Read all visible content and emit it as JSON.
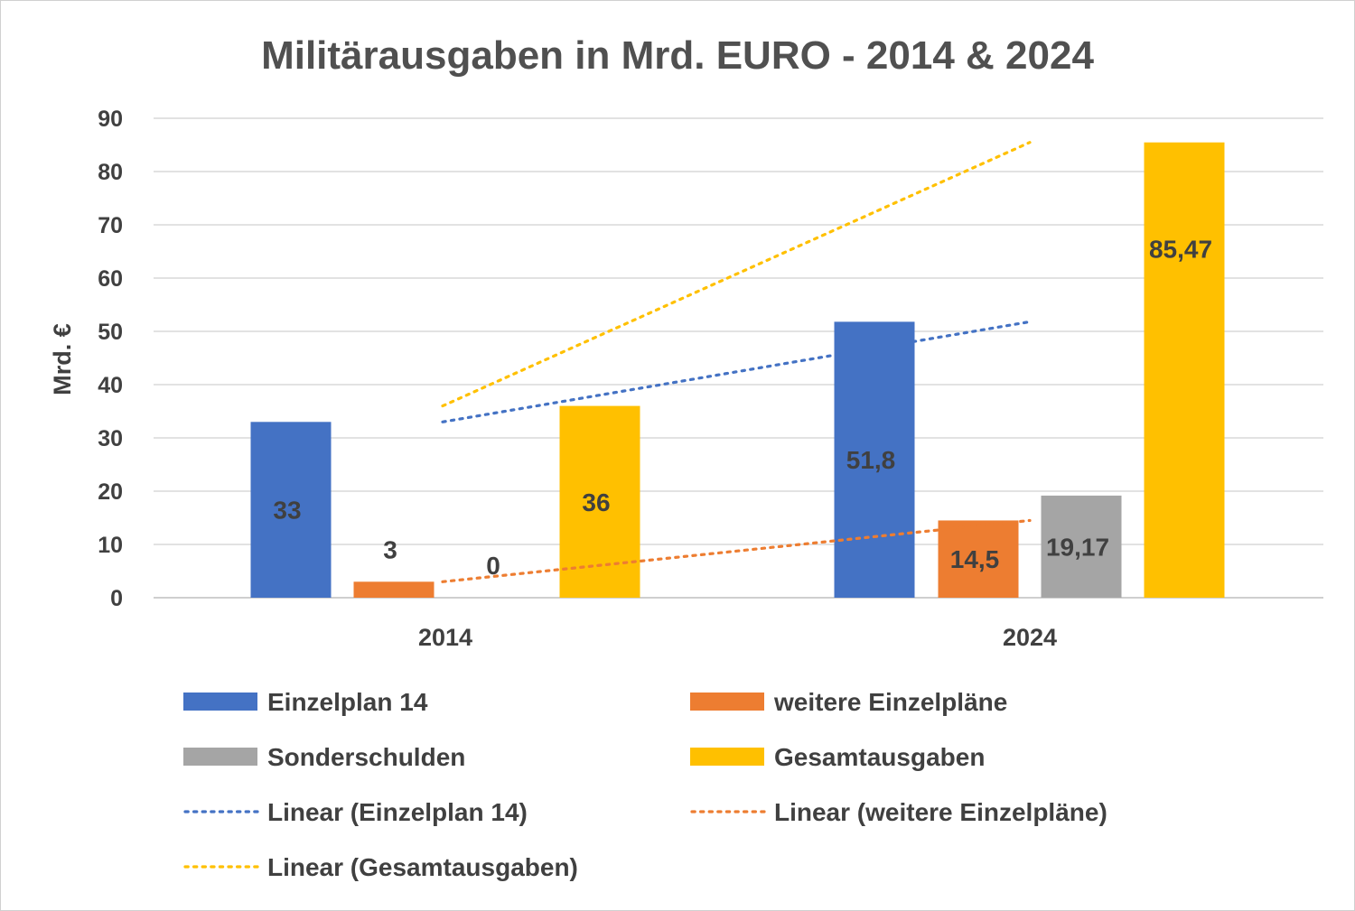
{
  "chart_data": {
    "type": "bar",
    "title": "Militärausgaben in Mrd. EURO - 2014 & 2024",
    "ylabel": "Mrd. €",
    "xlabel": "",
    "categories": [
      "2014",
      "2024"
    ],
    "ylim": [
      0,
      90
    ],
    "yticks": [
      "0",
      "10",
      "20",
      "30",
      "40",
      "50",
      "60",
      "70",
      "80",
      "90"
    ],
    "grid": true,
    "legend_position": "bottom",
    "series": [
      {
        "name": "Einzelplan 14",
        "values": [
          33,
          51.8
        ],
        "labels": [
          "33",
          "51,8"
        ],
        "color": "#4472C4"
      },
      {
        "name": "weitere Einzelpläne",
        "values": [
          3,
          14.5
        ],
        "labels": [
          "3",
          "14,5"
        ],
        "color": "#ED7D31"
      },
      {
        "name": "Sonderschulden",
        "values": [
          0,
          19.17
        ],
        "labels": [
          "0",
          "19,17"
        ],
        "color": "#A5A5A5"
      },
      {
        "name": "Gesamtausgaben",
        "values": [
          36,
          85.47
        ],
        "labels": [
          "36",
          "85,47"
        ],
        "color": "#FFC000"
      }
    ],
    "trendlines": [
      {
        "name": "Linear (Einzelplan 14)",
        "series": "Einzelplan 14",
        "values": [
          33,
          51.8
        ],
        "color": "#4472C4"
      },
      {
        "name": "Linear (weitere Einzelpläne)",
        "series": "weitere Einzelpläne",
        "values": [
          3,
          14.5
        ],
        "color": "#ED7D31"
      },
      {
        "name": "Linear (Gesamtausgaben)",
        "series": "Gesamtausgaben",
        "values": [
          36,
          85.47
        ],
        "color": "#FFC000"
      }
    ]
  }
}
